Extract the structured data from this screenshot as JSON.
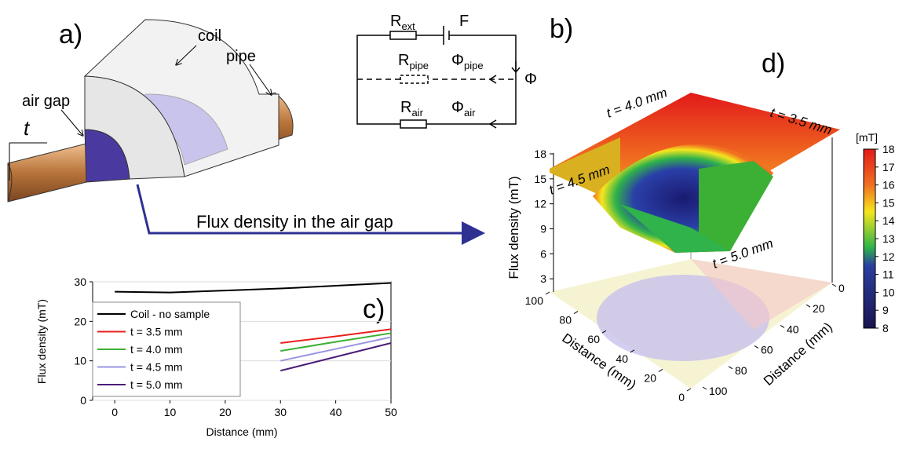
{
  "panel_a": {
    "label": "a)",
    "coil": "coil",
    "pipe": "pipe",
    "air_gap": "air gap",
    "t": "t"
  },
  "panel_b": {
    "label": "b)",
    "r_ext": {
      "main": "R",
      "sub": "ext"
    },
    "f": "F",
    "r_pipe": {
      "main": "R",
      "sub": "pipe"
    },
    "phi_pipe": {
      "main": "Φ",
      "sub": "pipe"
    },
    "phi": "Φ",
    "r_air": {
      "main": "R",
      "sub": "air"
    },
    "phi_air": {
      "main": "Φ",
      "sub": "air"
    }
  },
  "arrow_label": "Flux density in the air gap",
  "chart_data": {
    "type": "line",
    "label": "c)",
    "xlabel": "Distance (mm)",
    "ylabel": "Flux density (mT)",
    "x": [
      0,
      10,
      20,
      30,
      40,
      50
    ],
    "xlim": [
      -4,
      50
    ],
    "xticks": [
      0,
      10,
      20,
      30,
      40,
      50
    ],
    "ylim": [
      0,
      30
    ],
    "yticks": [
      0,
      10,
      20,
      30
    ],
    "grid": true,
    "series": [
      {
        "name": "Coil - no sample",
        "color": "#000000",
        "values": [
          27.5,
          27.3,
          27.8,
          28.3,
          29.0,
          29.7
        ]
      },
      {
        "name": "t = 3.5 mm",
        "color": "#e8201c",
        "values": [
          null,
          null,
          null,
          14.5,
          16.2,
          18.0
        ]
      },
      {
        "name": "t = 4.0 mm",
        "color": "#3cb034",
        "values": [
          null,
          null,
          null,
          12.5,
          14.8,
          17.0
        ]
      },
      {
        "name": "t = 4.5 mm",
        "color": "#9a96e0",
        "values": [
          null,
          null,
          null,
          10.0,
          13.0,
          16.0
        ]
      },
      {
        "name": "t = 5.0 mm",
        "color": "#4a1e78",
        "values": [
          null,
          null,
          null,
          7.5,
          11.0,
          14.5
        ]
      }
    ]
  },
  "panel_d": {
    "label": "d)",
    "zlabel": "Flux density (mT)",
    "zlim": [
      0,
      18
    ],
    "zticks": [
      3,
      6,
      9,
      12,
      15,
      18
    ],
    "dlabel": "Distance (mm)",
    "dlim": [
      0,
      100
    ],
    "dticks": [
      0,
      20,
      40,
      60,
      80,
      100
    ],
    "annotations": [
      "t = 4.0 mm",
      "t = 3.5 mm",
      "t = 4.5 mm",
      "t = 5.0 mm"
    ],
    "colorbar": {
      "unit": "[mT]",
      "lim": [
        8,
        18
      ],
      "ticks": [
        8,
        9,
        10,
        11,
        12,
        13,
        14,
        15,
        16,
        17,
        18
      ]
    }
  }
}
